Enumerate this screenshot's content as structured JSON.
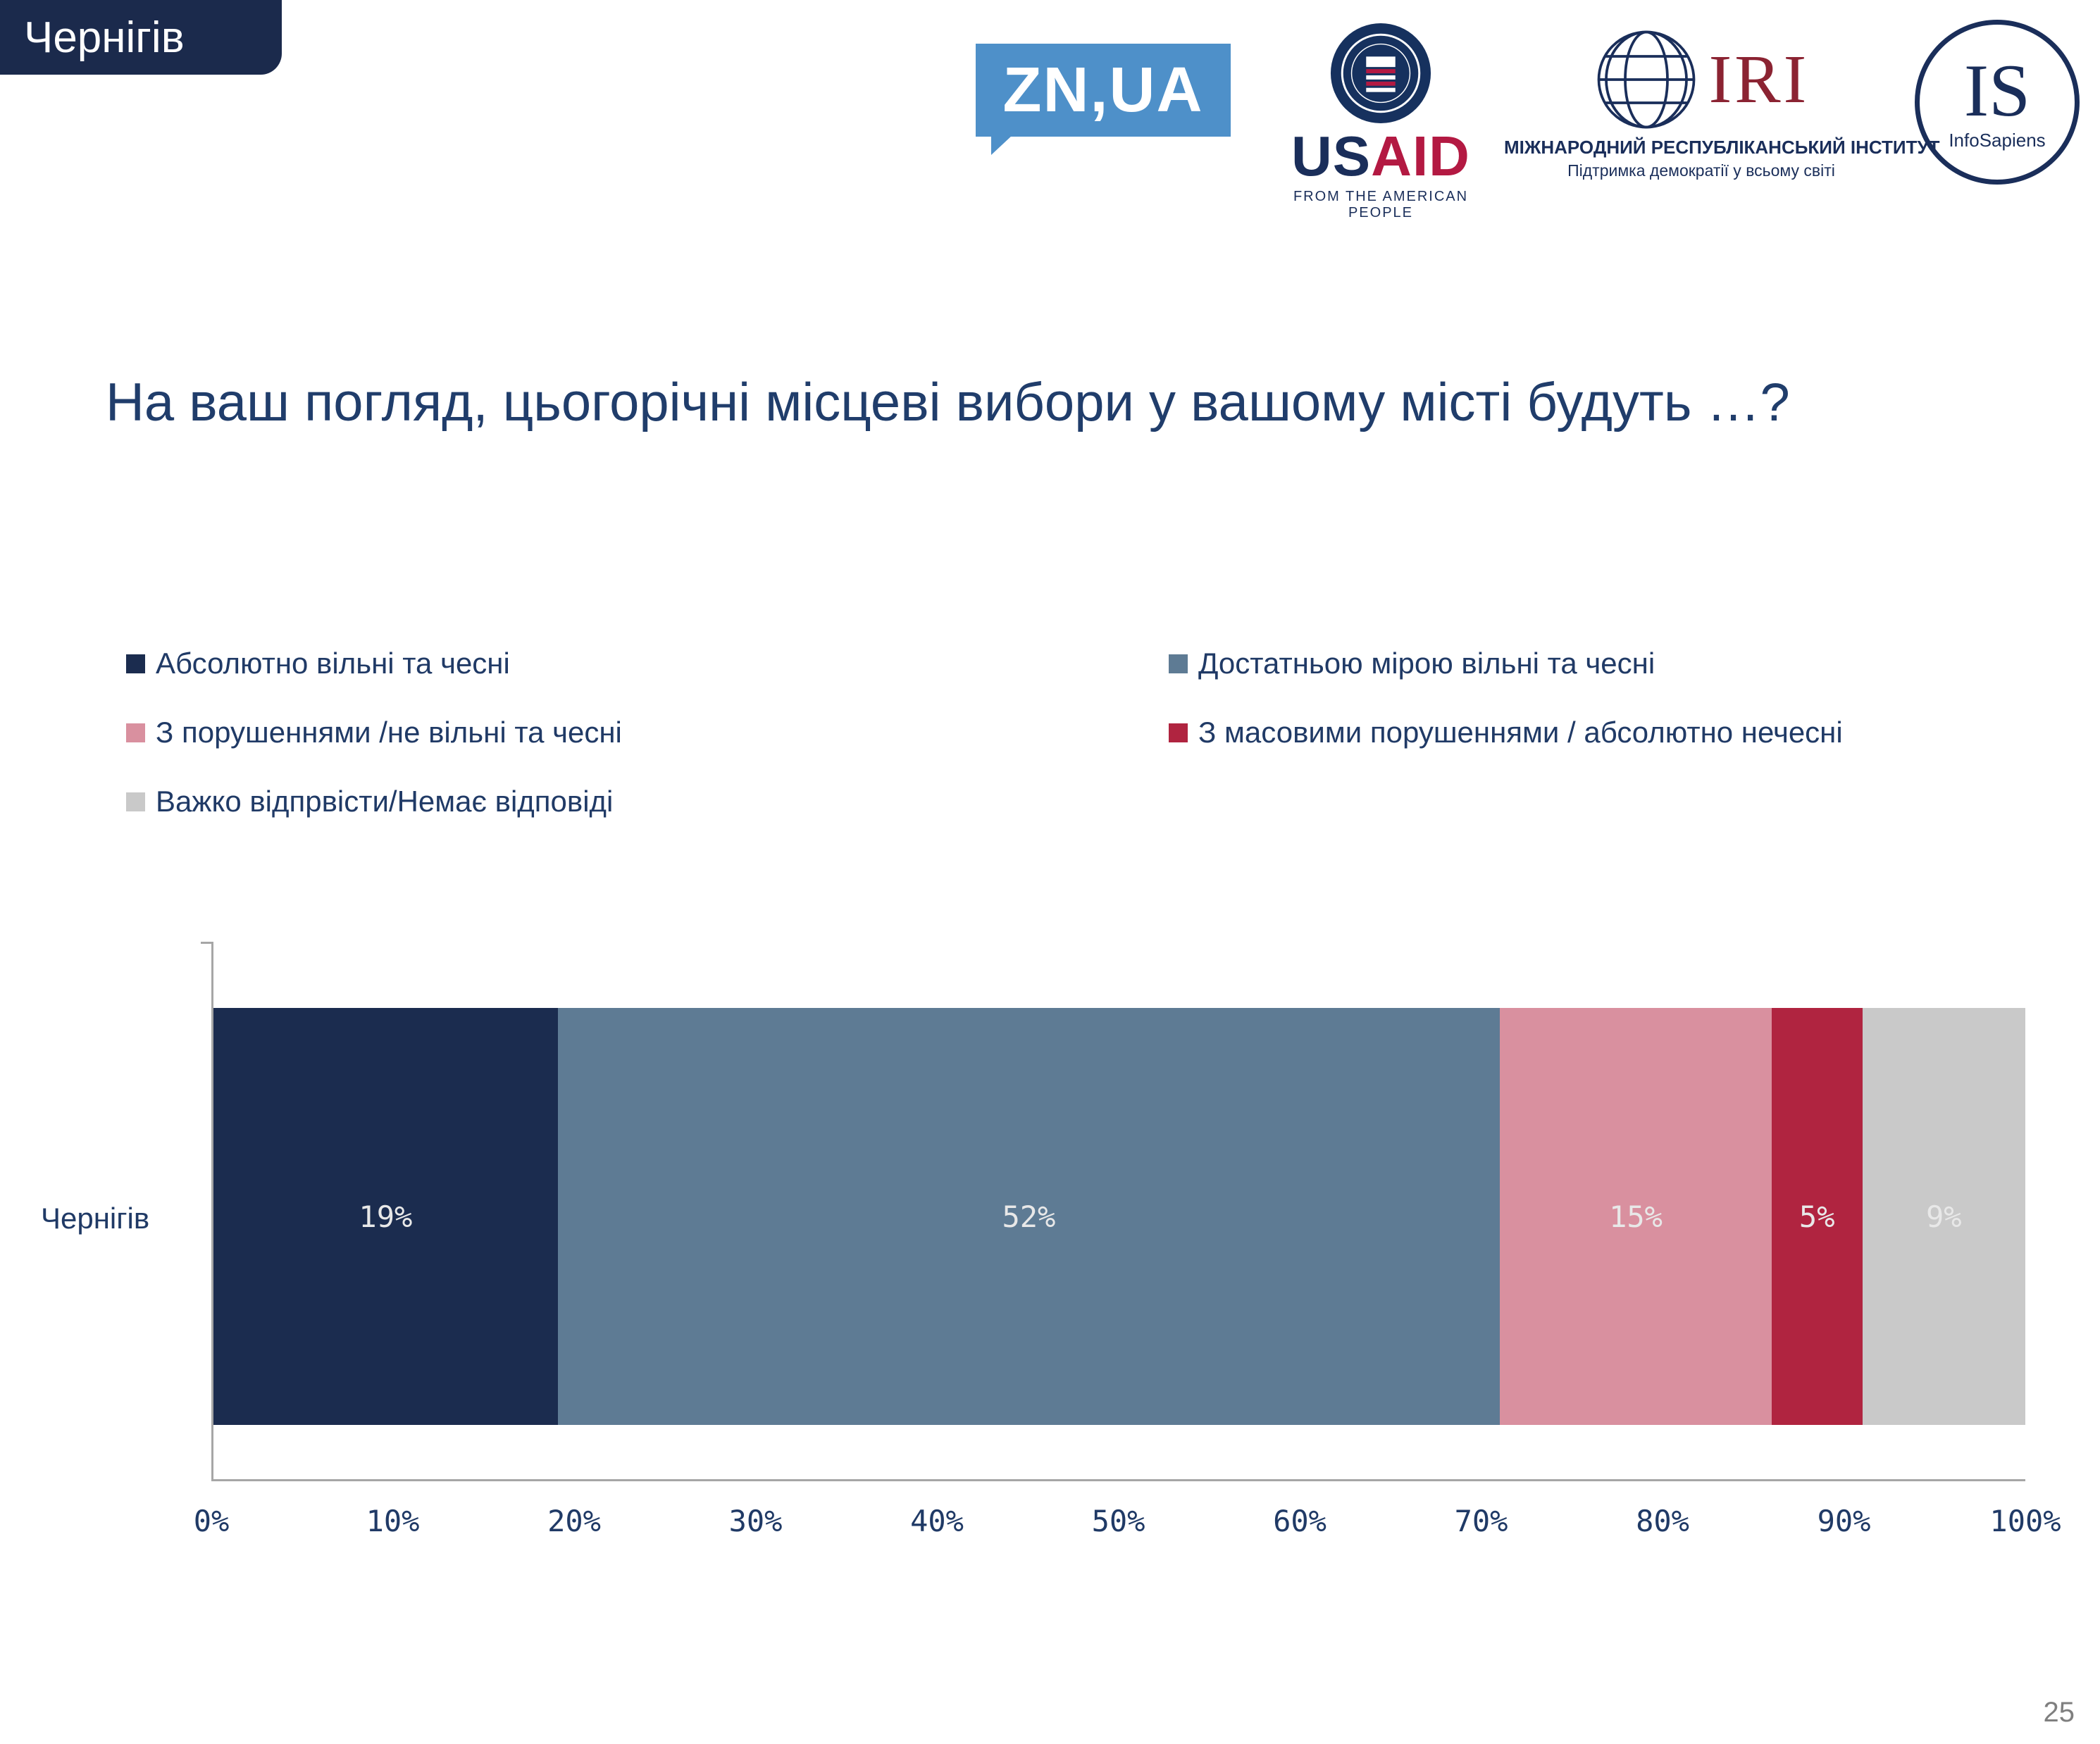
{
  "page": {
    "region_tab": "Чернігів",
    "title": "На ваш погляд, цьогорічні місцеві вибори у вашому місті будуть …?",
    "page_number": "25"
  },
  "logos": {
    "znua": {
      "label": "ZN,UA",
      "color": "#4e90c9"
    },
    "usaid": {
      "word_us": "US",
      "word_aid": "AID",
      "tagline": "FROM THE AMERICAN PEOPLE"
    },
    "iri": {
      "abbr": "IRI",
      "line1": "МІЖНАРОДНИЙ РЕСПУБЛІКАНСЬКИЙ ІНСТИТУТ",
      "line2": "Підтримка демократії у всьому світі"
    },
    "infosapiens": {
      "abbr": "IS",
      "name": "InfoSapiens"
    }
  },
  "chart_data": {
    "type": "bar",
    "orientation": "horizontal-stacked",
    "title": "На ваш погляд, цьогорічні місцеві вибори у вашому місті будуть …?",
    "categories": [
      "Чернігів"
    ],
    "series": [
      {
        "name": "Абсолютно вільні та чесні",
        "color": "#1b2c4f",
        "values": [
          19
        ]
      },
      {
        "name": "Достатньою мірою вільні та чесні",
        "color": "#5e7b94",
        "values": [
          52
        ]
      },
      {
        "name": "З порушеннями /не вільні та чесні",
        "color": "#d9909f",
        "values": [
          15
        ]
      },
      {
        "name": "З масовими порушеннями / абсолютно нечесні",
        "color": "#b02440",
        "values": [
          5
        ]
      },
      {
        "name": "Важко відпрвісти/Немає відповіді",
        "color": "#c9c9c9",
        "values": [
          9
        ]
      }
    ],
    "value_labels": [
      "19%",
      "52%",
      "15%",
      "5%",
      "9%"
    ],
    "xlim": [
      0,
      100
    ],
    "x_ticks": [
      "0%",
      "10%",
      "20%",
      "30%",
      "40%",
      "50%",
      "60%",
      "70%",
      "80%",
      "90%",
      "100%"
    ],
    "grid": "off",
    "legend_position": "above-chart-two-columns"
  }
}
